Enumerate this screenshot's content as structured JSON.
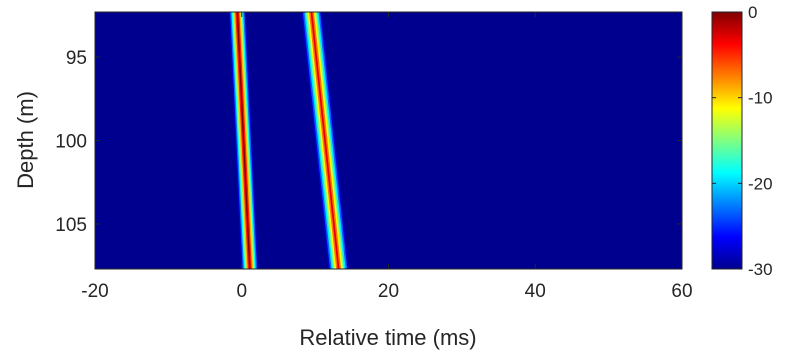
{
  "chart_data": {
    "type": "heatmap",
    "xlabel": "Relative time (ms)",
    "ylabel": "Depth (m)",
    "xlim": [
      -20,
      60
    ],
    "ylim": [
      92.3,
      107.7
    ],
    "x_ticks": [
      -20,
      0,
      20,
      40,
      60
    ],
    "y_ticks": [
      95,
      100,
      105
    ],
    "grid": false,
    "colormap": "jet",
    "colorbar": {
      "range": [
        -30,
        0
      ],
      "ticks": [
        0,
        -10,
        -20,
        -30
      ],
      "position": "right"
    },
    "background_value": -30,
    "arrivals": [
      {
        "peak_value": 0,
        "time_at_top": -0.6,
        "time_at_bottom": 1.1,
        "depth_top": 92.3,
        "depth_bottom": 107.7,
        "width_ms": 1.0
      },
      {
        "peak_value": -3,
        "time_at_top": 9.5,
        "time_at_bottom": 13.2,
        "depth_top": 92.3,
        "depth_bottom": 107.7,
        "width_ms": 1.2
      }
    ]
  }
}
